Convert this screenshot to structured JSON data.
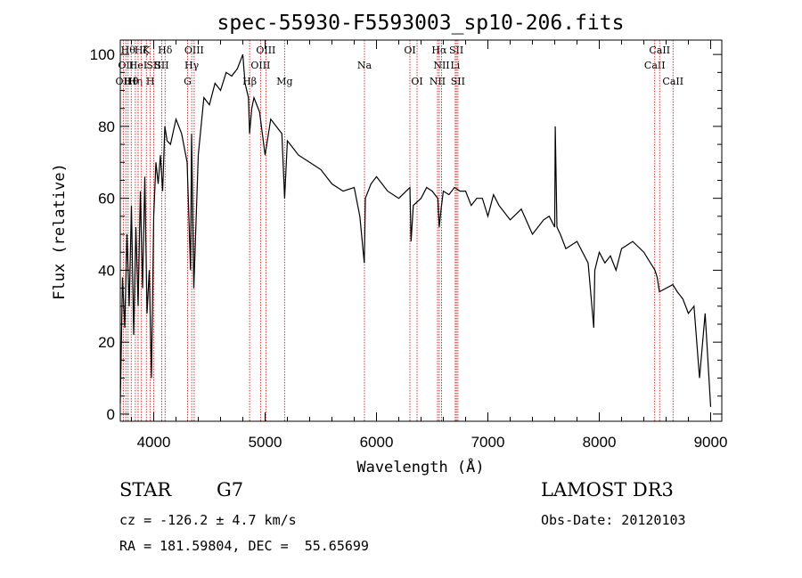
{
  "chart_data": {
    "type": "line",
    "title": "spec-55930-F5593003_sp10-206.fits",
    "xlabel": "Wavelength (Å)",
    "ylabel": "Flux (relative)",
    "xlim": [
      3700,
      9100
    ],
    "ylim": [
      -2,
      104
    ],
    "x_ticks": [
      4000,
      5000,
      6000,
      7000,
      8000,
      9000
    ],
    "y_ticks": [
      0,
      20,
      40,
      60,
      80,
      100
    ],
    "grid": false,
    "series": [
      {
        "x": [
          3700,
          3720,
          3740,
          3760,
          3780,
          3800,
          3820,
          3840,
          3860,
          3880,
          3900,
          3920,
          3940,
          3960,
          3980,
          4000,
          4020,
          4040,
          4060,
          4080,
          4100,
          4120,
          4150,
          4200,
          4250,
          4300,
          4330,
          4340,
          4360,
          4400,
          4450,
          4500,
          4550,
          4600,
          4650,
          4700,
          4750,
          4800,
          4820,
          4850,
          4861,
          4880,
          4900,
          4950,
          5000,
          5050,
          5100,
          5150,
          5175,
          5200,
          5250,
          5300,
          5400,
          5500,
          5600,
          5700,
          5800,
          5850,
          5890,
          5900,
          5950,
          6000,
          6100,
          6200,
          6300,
          6310,
          6330,
          6400,
          6450,
          6500,
          6550,
          6563,
          6580,
          6600,
          6650,
          6700,
          6750,
          6800,
          6850,
          6900,
          6950,
          7000,
          7050,
          7100,
          7200,
          7300,
          7400,
          7500,
          7550,
          7600,
          7605,
          7620,
          7650,
          7700,
          7800,
          7900,
          7950,
          7960,
          8000,
          8050,
          8100,
          8150,
          8200,
          8300,
          8400,
          8500,
          8520,
          8540,
          8600,
          8660,
          8700,
          8750,
          8800,
          8850,
          8900,
          8950,
          9000
        ],
        "y": [
          3,
          38,
          24,
          50,
          30,
          58,
          22,
          52,
          30,
          62,
          35,
          66,
          28,
          40,
          10,
          55,
          70,
          64,
          72,
          62,
          80,
          76,
          75,
          82,
          78,
          70,
          40,
          78,
          35,
          72,
          88,
          86,
          92,
          90,
          95,
          94,
          96,
          100,
          92,
          88,
          78,
          85,
          88,
          84,
          72,
          82,
          80,
          78,
          60,
          76,
          74,
          72,
          70,
          68,
          64,
          62,
          63,
          55,
          42,
          60,
          64,
          66,
          62,
          60,
          63,
          48,
          58,
          60,
          63,
          62,
          60,
          52,
          57,
          62,
          61,
          63,
          62,
          62,
          58,
          60,
          60,
          55,
          61,
          58,
          54,
          57,
          50,
          54,
          55,
          52,
          80,
          52,
          50,
          46,
          48,
          42,
          24,
          40,
          45,
          42,
          44,
          40,
          46,
          48,
          45,
          40,
          38,
          34,
          35,
          36,
          34,
          32,
          28,
          30,
          10,
          28,
          2
        ]
      }
    ],
    "lines": [
      {
        "wl": 3727,
        "text": "OII",
        "row": 2
      },
      {
        "wl": 3750,
        "text": "OII",
        "row": 1
      },
      {
        "wl": 3770,
        "text": "Hθ",
        "row": 0
      },
      {
        "wl": 3798,
        "text": "Hθ",
        "row": 2
      },
      {
        "wl": 3835,
        "text": "Hη",
        "row": 2
      },
      {
        "wl": 3860,
        "text": "HeI",
        "row": 1
      },
      {
        "wl": 3889,
        "text": "Hζ",
        "row": 0
      },
      {
        "wl": 3934,
        "text": "K",
        "row": 0
      },
      {
        "wl": 3969,
        "text": "H",
        "row": 2
      },
      {
        "wl": 4000,
        "text": "SII",
        "row": 1
      },
      {
        "wl": 4072,
        "text": "SII",
        "row": 1
      },
      {
        "wl": 4102,
        "text": "Hδ",
        "row": 0
      },
      {
        "wl": 4304,
        "text": "G",
        "row": 2
      },
      {
        "wl": 4341,
        "text": "Hγ",
        "row": 1
      },
      {
        "wl": 4363,
        "text": "OIII",
        "row": 0
      },
      {
        "wl": 4861,
        "text": "Hβ",
        "row": 2
      },
      {
        "wl": 4959,
        "text": "OIII",
        "row": 1
      },
      {
        "wl": 5007,
        "text": "OIII",
        "row": 0
      },
      {
        "wl": 5175,
        "text": "Mg",
        "row": 2
      },
      {
        "wl": 5892,
        "text": "Na",
        "row": 1
      },
      {
        "wl": 6300,
        "text": "OI",
        "row": 0
      },
      {
        "wl": 6364,
        "text": "OI",
        "row": 2
      },
      {
        "wl": 6548,
        "text": "NII",
        "row": 2
      },
      {
        "wl": 6563,
        "text": "Hα",
        "row": 0
      },
      {
        "wl": 6584,
        "text": "NII",
        "row": 1
      },
      {
        "wl": 6707,
        "text": "Li",
        "row": 1
      },
      {
        "wl": 6717,
        "text": "SII",
        "row": 0
      },
      {
        "wl": 6731,
        "text": "SII",
        "row": 2
      },
      {
        "wl": 8498,
        "text": "CaII",
        "row": 1
      },
      {
        "wl": 8542,
        "text": "CaII",
        "row": 0
      },
      {
        "wl": 8662,
        "text": "CaII",
        "row": 2
      }
    ]
  },
  "info": {
    "object_class": "STAR",
    "subclass": "G7",
    "survey": "LAMOST DR3",
    "cz_line": "cz = -126.2 ± 4.7 km/s",
    "obs_date": "Obs-Date: 20120103",
    "coords": "RA = 181.59804, DEC =  55.65699"
  }
}
